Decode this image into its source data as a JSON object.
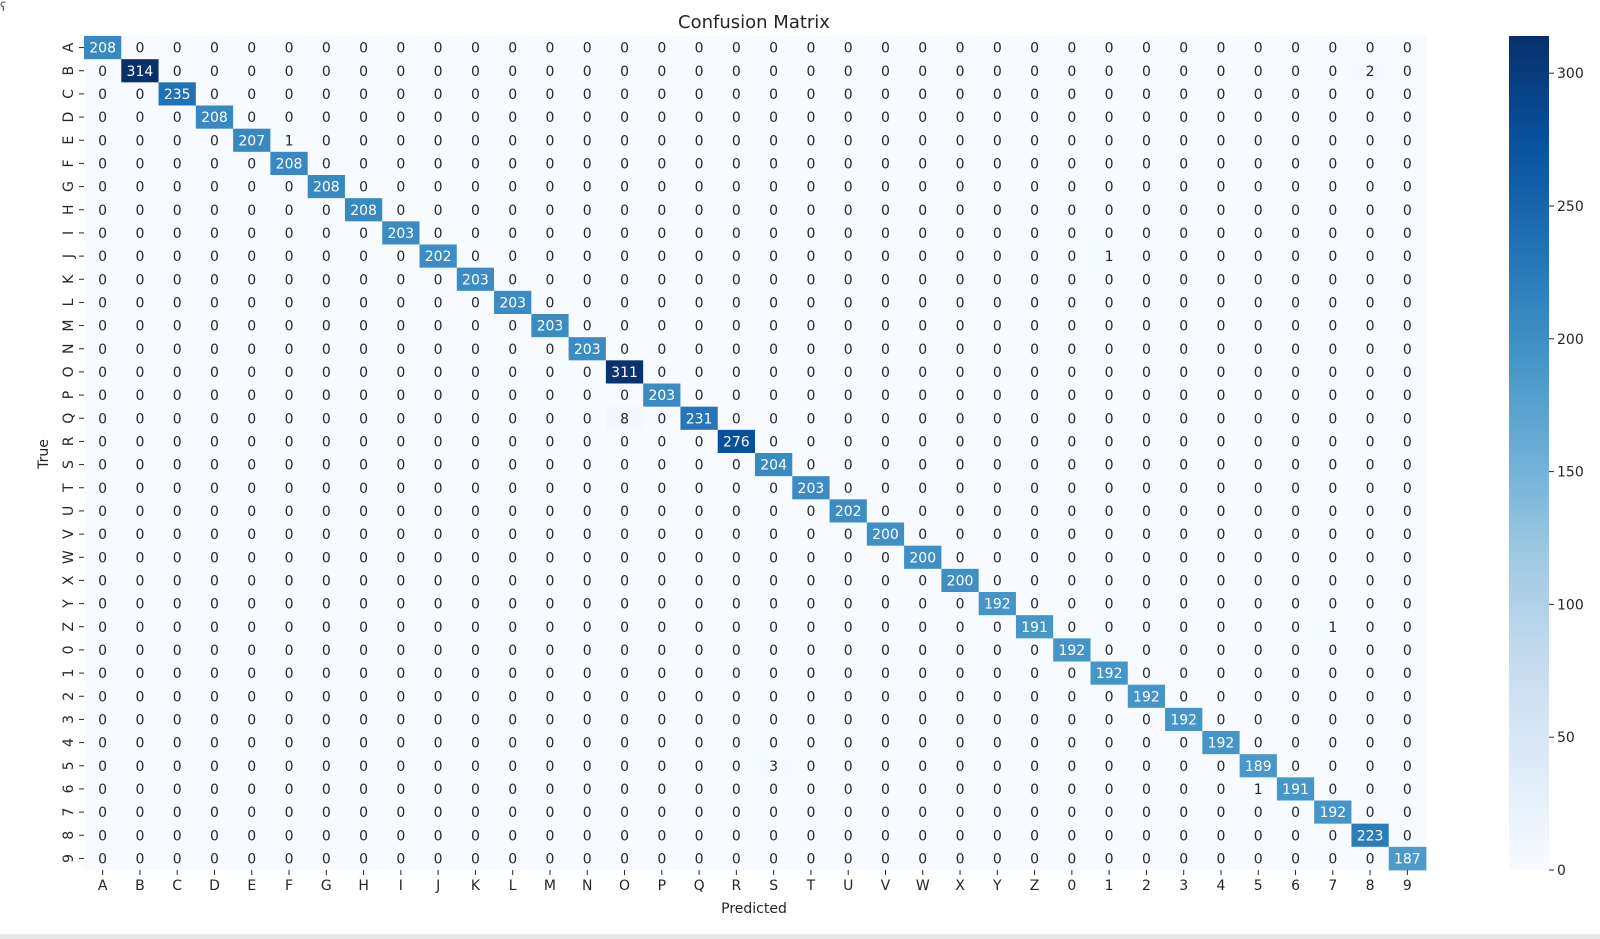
{
  "chart_data": {
    "type": "heatmap",
    "title": "Confusion Matrix",
    "xlabel": "Predicted",
    "ylabel": "True",
    "labels": [
      "A",
      "B",
      "C",
      "D",
      "E",
      "F",
      "G",
      "H",
      "I",
      "J",
      "K",
      "L",
      "M",
      "N",
      "O",
      "P",
      "Q",
      "R",
      "S",
      "T",
      "U",
      "V",
      "W",
      "X",
      "Y",
      "Z",
      "0",
      "1",
      "2",
      "3",
      "4",
      "5",
      "6",
      "7",
      "8",
      "9"
    ],
    "diagonal": [
      208,
      314,
      235,
      208,
      207,
      208,
      208,
      208,
      203,
      202,
      203,
      203,
      203,
      203,
      311,
      203,
      231,
      276,
      204,
      203,
      202,
      200,
      200,
      200,
      192,
      191,
      192,
      192,
      192,
      192,
      192,
      189,
      191,
      192,
      223,
      187
    ],
    "off_diagonal": [
      {
        "true": "B",
        "predicted": "8",
        "value": 2
      },
      {
        "true": "E",
        "predicted": "F",
        "value": 1
      },
      {
        "true": "J",
        "predicted": "1",
        "value": 1
      },
      {
        "true": "Q",
        "predicted": "O",
        "value": 8
      },
      {
        "true": "Z",
        "predicted": "7",
        "value": 1
      },
      {
        "true": "5",
        "predicted": "S",
        "value": 3
      },
      {
        "true": "6",
        "predicted": "5",
        "value": 1
      }
    ],
    "colormap": "Blues",
    "vmin": 0,
    "vmax": 314,
    "colorbar_ticks": [
      0,
      50,
      100,
      150,
      200,
      250,
      300
    ]
  },
  "colors": {
    "low": "#f7fbff",
    "mid": "#6baed6",
    "high": "#08306b",
    "text_dark": "#262626",
    "text_light": "#ffffff"
  }
}
